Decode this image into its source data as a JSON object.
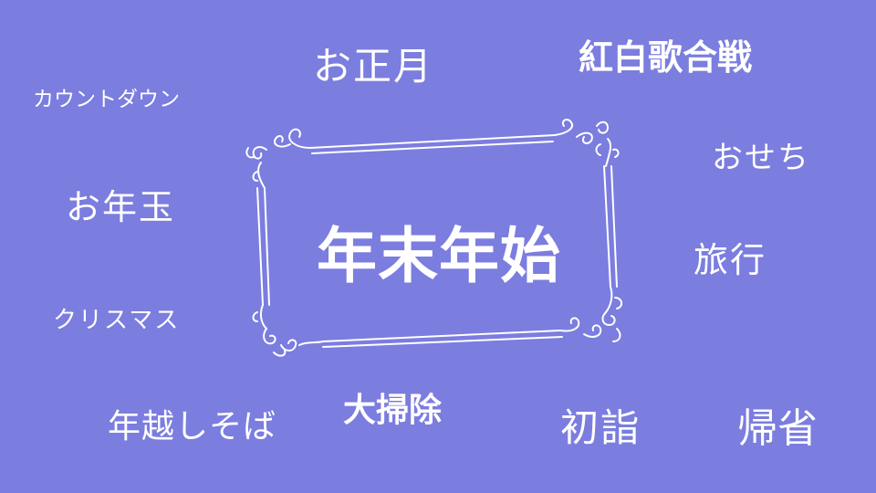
{
  "background_color": "#7b7ddf",
  "text_color": "#ffffff",
  "center_title": "年末年始",
  "words": {
    "oshougatsu": "お正月",
    "kouhaku": "紅白歌合戦",
    "countdown": "カウントダウン",
    "osechi": "おせち",
    "otoshidama": "お年玉",
    "ryokou": "旅行",
    "christmas": "クリスマス",
    "toshikoshi_soba": "年越しそば",
    "oosouji": "大掃除",
    "hatsumoude": "初詣",
    "kisei": "帰省"
  }
}
